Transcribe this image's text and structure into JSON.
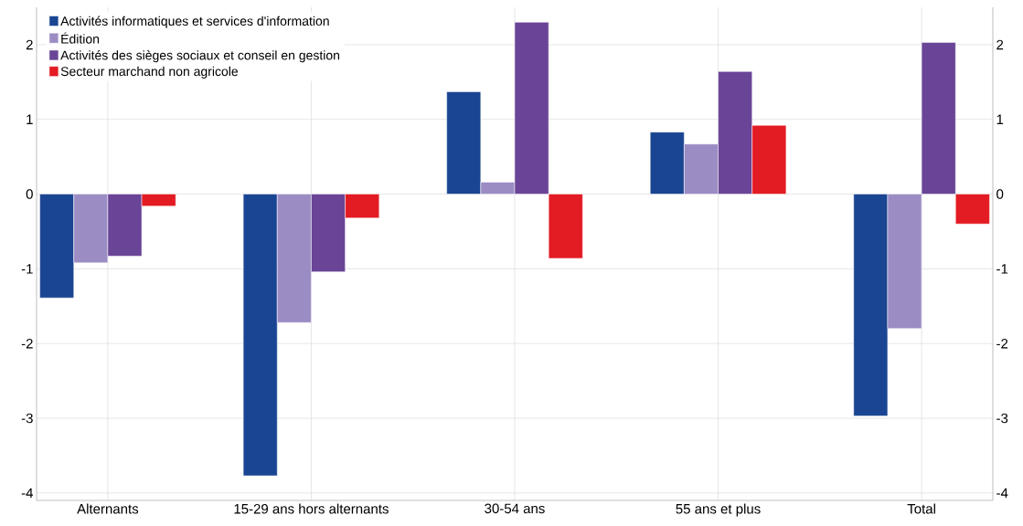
{
  "chart_data": {
    "type": "bar",
    "categories": [
      "Alternants",
      "15-29 ans hors alternants",
      "30-54 ans",
      "55 ans et plus",
      "Total"
    ],
    "series": [
      {
        "name": "Activités informatiques et services d'information",
        "color": "#1a4592",
        "values": [
          -1.39,
          -3.77,
          1.37,
          0.83,
          -2.97
        ]
      },
      {
        "name": "Édition",
        "color": "#9b8cc4",
        "values": [
          -0.92,
          -1.72,
          0.16,
          0.67,
          -1.8
        ]
      },
      {
        "name": "Activités des sièges sociaux et conseil en gestion",
        "color": "#6a4496",
        "values": [
          -0.83,
          -1.04,
          2.3,
          1.64,
          2.03
        ]
      },
      {
        "name": "Secteur marchand non agricole",
        "color": "#e31b23",
        "values": [
          -0.16,
          -0.32,
          -0.86,
          0.92,
          -0.4
        ]
      }
    ],
    "ylim": [
      -4.1,
      2.5
    ],
    "yticks": [
      -4,
      -3,
      -2,
      -1,
      0,
      1,
      2
    ],
    "y2lim": [
      -4.1,
      2.5
    ],
    "y2ticks": [
      -4,
      -3,
      -2,
      -1,
      0,
      1,
      2
    ],
    "grid": true,
    "legend": "top left"
  }
}
